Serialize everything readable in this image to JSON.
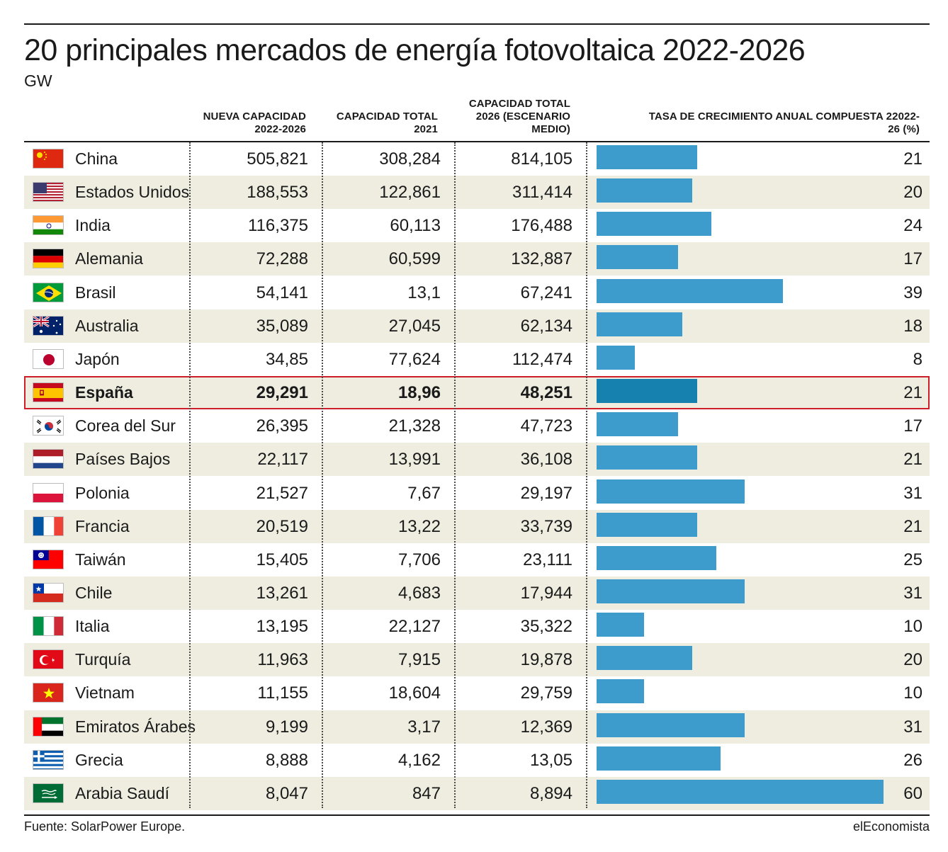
{
  "title": "20 principales mercados de energía fotovoltaica 2022-2026",
  "subtitle": "GW",
  "columns": {
    "nueva": "NUEVA CAPACIDAD 2022-2026",
    "total2021": "CAPACIDAD TOTAL 2021",
    "total2026": "CAPACIDAD TOTAL 2026 (ESCENARIO MEDIO)",
    "tasa": "TASA DE CRECIMIENTO ANUAL COMPUESTA 22022-26 (%)"
  },
  "source": "Fuente: SolarPower Europe.",
  "brand": "elEconomista",
  "colors": {
    "bar": "#3d9ccb",
    "bar_highlight": "#1681ae",
    "highlight_border": "#cc1f2a",
    "row_shade": "#efede0"
  },
  "chart_data": {
    "type": "table",
    "highlight": "España",
    "bar_column": "tasa",
    "rows": [
      {
        "flag": "china-flag",
        "country": "China",
        "nueva": "505,821",
        "total2021": "308,284",
        "total2026": "814,105",
        "tasa": 21
      },
      {
        "flag": "usa-flag",
        "country": "Estados Unidos",
        "nueva": "188,553",
        "total2021": "122,861",
        "total2026": "311,414",
        "tasa": 20
      },
      {
        "flag": "india-flag",
        "country": "India",
        "nueva": "116,375",
        "total2021": "60,113",
        "total2026": "176,488",
        "tasa": 24
      },
      {
        "flag": "germany-flag",
        "country": "Alemania",
        "nueva": "72,288",
        "total2021": "60,599",
        "total2026": "132,887",
        "tasa": 17
      },
      {
        "flag": "brazil-flag",
        "country": "Brasil",
        "nueva": "54,141",
        "total2021": "13,1",
        "total2026": "67,241",
        "tasa": 39
      },
      {
        "flag": "australia-flag",
        "country": "Australia",
        "nueva": "35,089",
        "total2021": "27,045",
        "total2026": "62,134",
        "tasa": 18
      },
      {
        "flag": "japan-flag",
        "country": "Japón",
        "nueva": "34,85",
        "total2021": "77,624",
        "total2026": "112,474",
        "tasa": 8
      },
      {
        "flag": "spain-flag",
        "country": "España",
        "nueva": "29,291",
        "total2021": "18,96",
        "total2026": "48,251",
        "tasa": 21
      },
      {
        "flag": "south-korea-flag",
        "country": "Corea del Sur",
        "nueva": "26,395",
        "total2021": "21,328",
        "total2026": "47,723",
        "tasa": 17
      },
      {
        "flag": "netherlands-flag",
        "country": "Países Bajos",
        "nueva": "22,117",
        "total2021": "13,991",
        "total2026": "36,108",
        "tasa": 21
      },
      {
        "flag": "poland-flag",
        "country": "Polonia",
        "nueva": "21,527",
        "total2021": "7,67",
        "total2026": "29,197",
        "tasa": 31
      },
      {
        "flag": "france-flag",
        "country": "Francia",
        "nueva": "20,519",
        "total2021": "13,22",
        "total2026": "33,739",
        "tasa": 21
      },
      {
        "flag": "taiwan-flag",
        "country": "Taiwán",
        "nueva": "15,405",
        "total2021": "7,706",
        "total2026": "23,111",
        "tasa": 25
      },
      {
        "flag": "chile-flag",
        "country": "Chile",
        "nueva": "13,261",
        "total2021": "4,683",
        "total2026": "17,944",
        "tasa": 31
      },
      {
        "flag": "italy-flag",
        "country": "Italia",
        "nueva": "13,195",
        "total2021": "22,127",
        "total2026": "35,322",
        "tasa": 10
      },
      {
        "flag": "turkey-flag",
        "country": "Turquía",
        "nueva": "11,963",
        "total2021": "7,915",
        "total2026": "19,878",
        "tasa": 20
      },
      {
        "flag": "vietnam-flag",
        "country": "Vietnam",
        "nueva": "11,155",
        "total2021": "18,604",
        "total2026": "29,759",
        "tasa": 10
      },
      {
        "flag": "uae-flag",
        "country": "Emiratos Árabes",
        "nueva": "9,199",
        "total2021": "3,17",
        "total2026": "12,369",
        "tasa": 31
      },
      {
        "flag": "greece-flag",
        "country": "Grecia",
        "nueva": "8,888",
        "total2021": "4,162",
        "total2026": "13,05",
        "tasa": 26
      },
      {
        "flag": "saudi-arabia-flag",
        "country": "Arabia Saudí",
        "nueva": "8,047",
        "total2021": "847",
        "total2026": "8,894",
        "tasa": 60
      }
    ]
  }
}
